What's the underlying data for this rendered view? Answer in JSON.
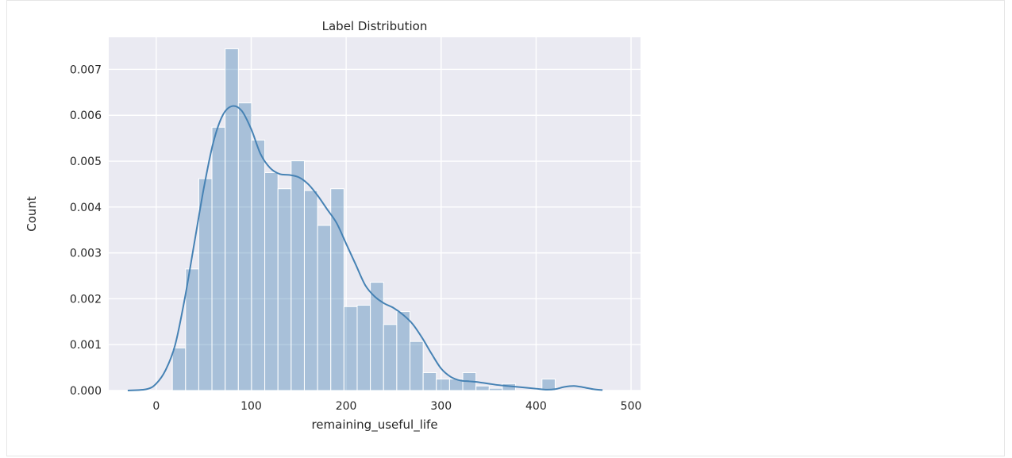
{
  "chart_data": {
    "type": "bar",
    "title": "Label Distribution",
    "xlabel": "remaining_useful_life",
    "ylabel": "Count",
    "xlim": [
      -50,
      510
    ],
    "ylim": [
      0,
      0.0077
    ],
    "xticks": [
      0,
      100,
      200,
      300,
      400,
      500
    ],
    "yticks": [
      0.0,
      0.001,
      0.002,
      0.003,
      0.004,
      0.005,
      0.006,
      0.007
    ],
    "ytick_labels": [
      "0.000",
      "0.001",
      "0.002",
      "0.003",
      "0.004",
      "0.005",
      "0.006",
      "0.007"
    ],
    "grid": true,
    "background": "#eaeaf2",
    "bar_color": "#4682b4",
    "bar_opacity": 0.4,
    "line_color": "#4682b4",
    "bin_width": 13.9,
    "bins": [
      {
        "x0": 17.0,
        "density": 0.00093
      },
      {
        "x0": 30.9,
        "density": 0.00265
      },
      {
        "x0": 44.8,
        "density": 0.00462
      },
      {
        "x0": 58.7,
        "density": 0.00574
      },
      {
        "x0": 72.6,
        "density": 0.00745
      },
      {
        "x0": 86.5,
        "density": 0.00627
      },
      {
        "x0": 100.4,
        "density": 0.00546
      },
      {
        "x0": 114.3,
        "density": 0.00475
      },
      {
        "x0": 128.2,
        "density": 0.0044
      },
      {
        "x0": 142.1,
        "density": 0.00501
      },
      {
        "x0": 156.0,
        "density": 0.00436
      },
      {
        "x0": 169.9,
        "density": 0.0036
      },
      {
        "x0": 183.8,
        "density": 0.0044
      },
      {
        "x0": 197.7,
        "density": 0.00183
      },
      {
        "x0": 211.6,
        "density": 0.00186
      },
      {
        "x0": 225.5,
        "density": 0.00236
      },
      {
        "x0": 239.4,
        "density": 0.00144
      },
      {
        "x0": 253.3,
        "density": 0.00172
      },
      {
        "x0": 267.2,
        "density": 0.00107
      },
      {
        "x0": 281.1,
        "density": 0.00039
      },
      {
        "x0": 295.0,
        "density": 0.00025
      },
      {
        "x0": 308.9,
        "density": 0.00025
      },
      {
        "x0": 322.8,
        "density": 0.00039
      },
      {
        "x0": 336.7,
        "density": 0.0001
      },
      {
        "x0": 350.6,
        "density": 5e-05
      },
      {
        "x0": 364.5,
        "density": 0.00015
      },
      {
        "x0": 378.4,
        "density": 0.0
      },
      {
        "x0": 392.3,
        "density": 0.0
      },
      {
        "x0": 406.2,
        "density": 0.00025
      },
      {
        "x0": 420.1,
        "density": 0.0
      }
    ],
    "kde": {
      "x": [
        -30,
        -10,
        0,
        10,
        20,
        30,
        40,
        50,
        60,
        70,
        80,
        90,
        100,
        110,
        120,
        130,
        140,
        150,
        160,
        170,
        180,
        190,
        200,
        210,
        220,
        230,
        240,
        250,
        260,
        270,
        280,
        290,
        300,
        310,
        320,
        330,
        340,
        350,
        360,
        370,
        380,
        390,
        400,
        410,
        420,
        430,
        440,
        450,
        460,
        470
      ],
      "y": [
        0.0,
        3e-05,
        0.00015,
        0.00045,
        0.001,
        0.002,
        0.0032,
        0.0044,
        0.0054,
        0.006,
        0.0062,
        0.0061,
        0.0057,
        0.00515,
        0.00485,
        0.00472,
        0.0047,
        0.00465,
        0.0045,
        0.00425,
        0.00395,
        0.00365,
        0.0032,
        0.00275,
        0.0023,
        0.00205,
        0.0019,
        0.0018,
        0.00165,
        0.00145,
        0.00115,
        0.0008,
        0.00048,
        0.0003,
        0.00022,
        0.0002,
        0.00018,
        0.00015,
        0.00012,
        0.0001,
        8e-05,
        6e-05,
        4e-05,
        2e-05,
        3e-05,
        8e-05,
        0.0001,
        7e-05,
        3e-05,
        1e-05
      ]
    }
  }
}
